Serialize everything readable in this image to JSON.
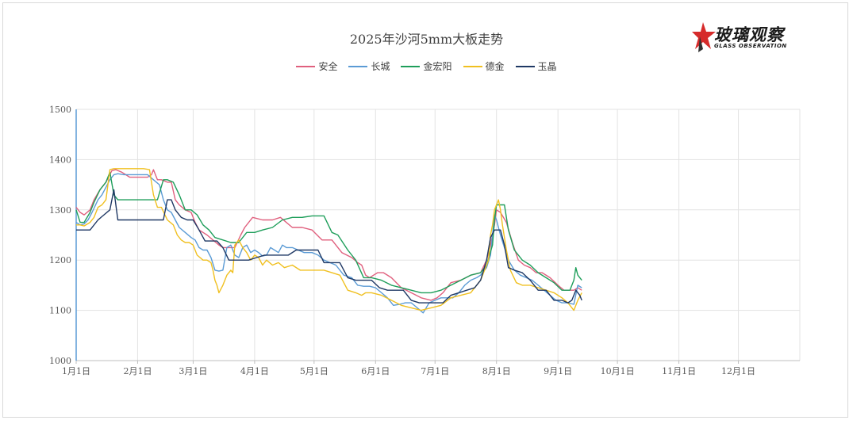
{
  "chart_data": {
    "type": "line",
    "title": "2025年沙河5mm大板走势",
    "xlabel": "",
    "ylabel": "",
    "ylim": [
      1000,
      1500
    ],
    "yticks": [
      1000,
      1100,
      1200,
      1300,
      1400,
      1500
    ],
    "xlim": [
      1,
      366
    ],
    "x_tick_labels": [
      "1月1日",
      "2月1日",
      "3月1日",
      "4月1日",
      "5月1日",
      "6月1日",
      "7月1日",
      "8月1日",
      "9月1日",
      "10月1日",
      "11月1日",
      "12月1日"
    ],
    "x_tick_days": [
      1,
      32,
      60,
      91,
      121,
      152,
      182,
      213,
      244,
      274,
      305,
      335
    ],
    "grid": true,
    "legend_position": "top",
    "series": [
      {
        "name": "安全",
        "color": "#e0607e",
        "x": [
          1,
          3,
          5,
          8,
          10,
          13,
          16,
          19,
          21,
          24,
          26,
          28,
          30,
          31,
          33,
          35,
          37,
          39,
          40,
          42,
          44,
          47,
          49,
          51,
          53,
          56,
          59,
          61,
          63,
          65,
          67,
          70,
          73,
          75,
          77,
          79,
          81,
          84,
          86,
          90,
          95,
          100,
          104,
          110,
          115,
          120,
          125,
          130,
          135,
          140,
          143,
          145,
          147,
          149,
          151,
          153,
          156,
          160,
          165,
          170,
          175,
          180,
          183,
          186,
          190,
          195,
          200,
          205,
          208,
          210,
          212,
          213,
          215,
          218,
          221,
          224,
          227,
          230,
          233,
          236,
          240,
          244,
          247,
          250,
          252,
          254,
          256
        ],
        "y": [
          1305,
          1295,
          1290,
          1300,
          1320,
          1340,
          1355,
          1378,
          1380,
          1375,
          1370,
          1365,
          1365,
          1365,
          1365,
          1365,
          1365,
          1370,
          1380,
          1360,
          1360,
          1355,
          1355,
          1320,
          1310,
          1300,
          1295,
          1275,
          1260,
          1255,
          1250,
          1240,
          1230,
          1225,
          1225,
          1225,
          1225,
          1250,
          1265,
          1285,
          1280,
          1280,
          1285,
          1265,
          1265,
          1260,
          1240,
          1240,
          1215,
          1205,
          1195,
          1190,
          1170,
          1165,
          1170,
          1175,
          1175,
          1165,
          1145,
          1135,
          1125,
          1120,
          1125,
          1135,
          1155,
          1160,
          1170,
          1175,
          1200,
          1230,
          1270,
          1300,
          1295,
          1275,
          1235,
          1200,
          1190,
          1185,
          1175,
          1175,
          1165,
          1150,
          1140,
          1140,
          1140,
          1145,
          1140
        ]
      },
      {
        "name": "长城",
        "color": "#5b9bd5",
        "x": [
          1,
          3,
          5,
          7,
          9,
          12,
          14,
          16,
          18,
          20,
          22,
          25,
          28,
          31,
          34,
          37,
          40,
          43,
          45,
          47,
          49,
          51,
          53,
          56,
          59,
          61,
          63,
          65,
          67,
          69,
          71,
          73,
          75,
          77,
          79,
          81,
          83,
          85,
          87,
          89,
          91,
          93,
          95,
          97,
          99,
          101,
          103,
          105,
          107,
          110,
          113,
          116,
          120,
          123,
          126,
          129,
          132,
          136,
          140,
          143,
          146,
          149,
          152,
          155,
          158,
          161,
          164,
          167,
          170,
          173,
          176,
          179,
          182,
          185,
          188,
          191,
          194,
          197,
          200,
          203,
          205,
          208,
          210,
          211,
          212,
          213,
          215,
          217,
          219,
          222,
          225,
          228,
          231,
          234,
          237,
          240,
          243,
          246,
          249,
          252,
          254,
          256
        ],
        "y": [
          1275,
          1270,
          1272,
          1280,
          1295,
          1320,
          1330,
          1345,
          1360,
          1370,
          1372,
          1370,
          1370,
          1370,
          1370,
          1370,
          1360,
          1350,
          1320,
          1300,
          1295,
          1280,
          1265,
          1255,
          1245,
          1240,
          1225,
          1220,
          1220,
          1205,
          1180,
          1178,
          1180,
          1225,
          1230,
          1210,
          1205,
          1225,
          1230,
          1215,
          1220,
          1215,
          1208,
          1210,
          1225,
          1220,
          1215,
          1230,
          1225,
          1225,
          1220,
          1215,
          1215,
          1210,
          1200,
          1195,
          1190,
          1170,
          1165,
          1150,
          1148,
          1148,
          1145,
          1135,
          1125,
          1110,
          1112,
          1115,
          1115,
          1105,
          1095,
          1115,
          1120,
          1125,
          1125,
          1125,
          1135,
          1150,
          1160,
          1165,
          1170,
          1185,
          1210,
          1250,
          1290,
          1280,
          1250,
          1225,
          1200,
          1180,
          1170,
          1165,
          1160,
          1150,
          1140,
          1130,
          1120,
          1115,
          1115,
          1112,
          1150,
          1145
        ]
      },
      {
        "name": "金宏阳",
        "color": "#1e9e5a",
        "x": [
          1,
          3,
          5,
          8,
          10,
          13,
          16,
          18,
          20,
          22,
          26,
          30,
          33,
          36,
          38,
          42,
          45,
          47,
          50,
          53,
          56,
          59,
          62,
          65,
          68,
          71,
          75,
          79,
          83,
          87,
          91,
          95,
          100,
          105,
          110,
          115,
          120,
          123,
          126,
          130,
          133,
          138,
          142,
          146,
          150,
          155,
          160,
          165,
          170,
          175,
          180,
          185,
          190,
          195,
          200,
          205,
          208,
          211,
          212,
          213,
          215,
          217,
          219,
          222,
          226,
          230,
          234,
          238,
          242,
          246,
          250,
          252,
          253,
          254,
          256
        ],
        "y": [
          1300,
          1275,
          1275,
          1295,
          1315,
          1340,
          1355,
          1375,
          1330,
          1320,
          1320,
          1320,
          1320,
          1320,
          1320,
          1320,
          1360,
          1360,
          1355,
          1330,
          1300,
          1300,
          1290,
          1270,
          1260,
          1245,
          1240,
          1235,
          1235,
          1255,
          1255,
          1260,
          1265,
          1280,
          1285,
          1285,
          1288,
          1288,
          1288,
          1255,
          1250,
          1220,
          1200,
          1165,
          1165,
          1160,
          1150,
          1145,
          1140,
          1135,
          1135,
          1140,
          1150,
          1160,
          1170,
          1175,
          1190,
          1230,
          1280,
          1310,
          1310,
          1310,
          1260,
          1220,
          1200,
          1190,
          1175,
          1165,
          1155,
          1140,
          1140,
          1160,
          1185,
          1170,
          1160
        ]
      },
      {
        "name": "德金",
        "color": "#f0c020",
        "x": [
          1,
          3,
          5,
          8,
          10,
          12,
          14,
          16,
          18,
          20,
          23,
          27,
          31,
          35,
          38,
          40,
          42,
          44,
          47,
          50,
          52,
          54,
          56,
          58,
          60,
          62,
          65,
          67,
          69,
          70,
          71,
          72,
          73,
          75,
          77,
          79,
          80,
          81,
          83,
          85,
          87,
          89,
          91,
          93,
          95,
          97,
          100,
          103,
          106,
          110,
          114,
          118,
          122,
          126,
          130,
          134,
          138,
          142,
          145,
          147,
          150,
          155,
          160,
          165,
          170,
          175,
          180,
          185,
          190,
          195,
          200,
          205,
          207,
          209,
          210,
          211,
          212,
          213,
          214,
          215,
          216,
          218,
          220,
          223,
          226,
          230,
          234,
          238,
          242,
          246,
          249,
          252,
          254,
          256
        ],
        "y": [
          1270,
          1270,
          1268,
          1275,
          1285,
          1305,
          1310,
          1320,
          1380,
          1382,
          1382,
          1382,
          1382,
          1382,
          1380,
          1330,
          1305,
          1305,
          1280,
          1270,
          1250,
          1240,
          1235,
          1235,
          1230,
          1210,
          1200,
          1200,
          1195,
          1180,
          1160,
          1150,
          1135,
          1150,
          1170,
          1180,
          1175,
          1230,
          1240,
          1225,
          1215,
          1200,
          1210,
          1205,
          1190,
          1200,
          1190,
          1195,
          1185,
          1190,
          1180,
          1180,
          1180,
          1180,
          1175,
          1170,
          1140,
          1135,
          1130,
          1135,
          1135,
          1130,
          1120,
          1110,
          1105,
          1100,
          1105,
          1110,
          1125,
          1130,
          1135,
          1160,
          1180,
          1200,
          1250,
          1270,
          1300,
          1310,
          1320,
          1300,
          1270,
          1220,
          1180,
          1155,
          1150,
          1150,
          1145,
          1140,
          1135,
          1125,
          1115,
          1100,
          1120,
          1135
        ]
      },
      {
        "name": "玉晶",
        "color": "#1f3864",
        "x": [
          1,
          4,
          8,
          12,
          15,
          18,
          20,
          21,
          22,
          24,
          27,
          30,
          34,
          38,
          40,
          42,
          45,
          47,
          49,
          51,
          54,
          57,
          60,
          63,
          66,
          69,
          72,
          75,
          78,
          81,
          84,
          88,
          92,
          96,
          100,
          104,
          108,
          112,
          116,
          120,
          123,
          126,
          130,
          134,
          138,
          142,
          146,
          150,
          154,
          158,
          162,
          166,
          170,
          174,
          178,
          182,
          186,
          190,
          194,
          198,
          202,
          205,
          208,
          210,
          212,
          213,
          215,
          217,
          219,
          222,
          226,
          230,
          234,
          238,
          242,
          246,
          249,
          251,
          253,
          255,
          256
        ],
        "y": [
          1260,
          1260,
          1260,
          1280,
          1290,
          1300,
          1340,
          1310,
          1280,
          1280,
          1280,
          1280,
          1280,
          1280,
          1280,
          1280,
          1280,
          1320,
          1320,
          1300,
          1285,
          1280,
          1280,
          1260,
          1238,
          1238,
          1238,
          1225,
          1200,
          1200,
          1200,
          1200,
          1205,
          1210,
          1210,
          1210,
          1210,
          1220,
          1220,
          1220,
          1220,
          1195,
          1195,
          1195,
          1165,
          1160,
          1160,
          1160,
          1145,
          1140,
          1140,
          1140,
          1120,
          1115,
          1115,
          1115,
          1115,
          1130,
          1135,
          1140,
          1145,
          1160,
          1200,
          1245,
          1260,
          1260,
          1260,
          1230,
          1185,
          1180,
          1175,
          1160,
          1140,
          1140,
          1120,
          1120,
          1115,
          1120,
          1140,
          1130,
          1120
        ]
      }
    ]
  },
  "logo": {
    "name": "玻璃观察",
    "subtitle": "GLASS OBSERVATION"
  }
}
